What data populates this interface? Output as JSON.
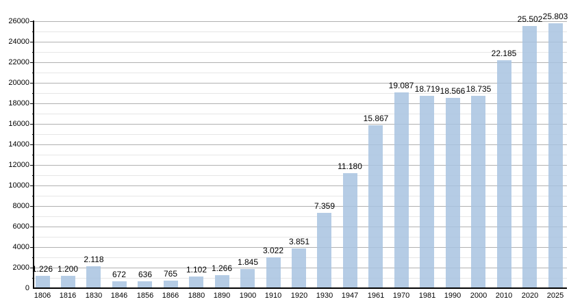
{
  "chart_data": {
    "type": "bar",
    "title": "",
    "xlabel": "",
    "ylabel": "",
    "categories": [
      "1806",
      "1816",
      "1830",
      "1846",
      "1856",
      "1866",
      "1880",
      "1890",
      "1900",
      "1910",
      "1920",
      "1930",
      "1947",
      "1961",
      "1970",
      "1981",
      "1990",
      "2000",
      "2010",
      "2020",
      "2025"
    ],
    "values": [
      1226,
      1200,
      2118,
      672,
      636,
      765,
      1102,
      1266,
      1845,
      3022,
      3851,
      7359,
      11180,
      15867,
      19087,
      18719,
      18566,
      18735,
      22185,
      25502,
      25803
    ],
    "value_labels": [
      "1.226",
      "1.200",
      "2.118",
      "672",
      "636",
      "765",
      "1.102",
      "1.266",
      "1.845",
      "3.022",
      "3.851",
      "7.359",
      "11.180",
      "15.867",
      "19.087",
      "18.719",
      "18.566",
      "18.735",
      "22.185",
      "25.502",
      "25.803"
    ],
    "ylim": [
      0,
      26000
    ],
    "y_major_step": 2000,
    "y_minor_step": 1000,
    "y_tick_labels": [
      "0",
      "2000",
      "4000",
      "6000",
      "8000",
      "10000",
      "12000",
      "14000",
      "16000",
      "18000",
      "20000",
      "22000",
      "24000",
      "26000"
    ],
    "grid": true,
    "legend_position": "none",
    "colors": {
      "bar_fill": "rgba(168,195,225,0.85)",
      "major_gridline": "#b0b0b0",
      "minor_gridline": "#e6e6e6",
      "axis": "#000000",
      "text": "#000000",
      "background": "#ffffff"
    }
  }
}
